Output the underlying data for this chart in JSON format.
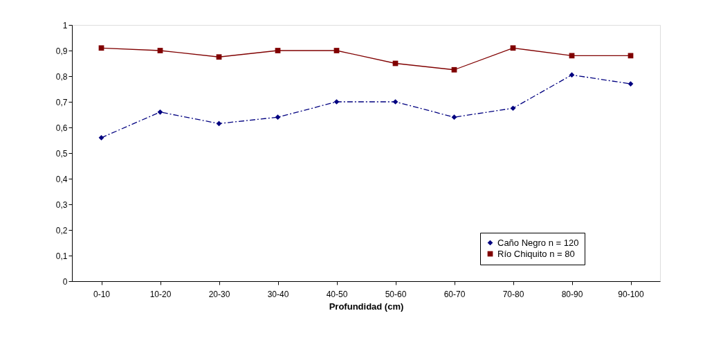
{
  "chart_data": {
    "type": "line",
    "xlabel": "Profundidad (cm)",
    "categories": [
      "0-10",
      "10-20",
      "20-30",
      "30-40",
      "40-50",
      "50-60",
      "60-70",
      "70-80",
      "80-90",
      "90-100"
    ],
    "series": [
      {
        "name": "Caño Negro n = 120",
        "color": "#000080",
        "marker": "diamond",
        "line_style": "dashed",
        "values": [
          0.56,
          0.66,
          0.615,
          0.64,
          0.7,
          0.7,
          0.64,
          0.675,
          0.805,
          0.77
        ]
      },
      {
        "name": "Río Chiquito n = 80",
        "color": "#800000",
        "marker": "square",
        "line_style": "solid",
        "values": [
          0.91,
          0.9,
          0.875,
          0.9,
          0.9,
          0.85,
          0.825,
          0.91,
          0.88,
          0.88
        ]
      }
    ],
    "ylim": [
      0,
      1
    ],
    "yticks": [
      0,
      {
        "value": 0.1,
        "label": "0,1"
      },
      {
        "value": 0.2,
        "label": "0,2"
      },
      {
        "value": 0.3,
        "label": "0,3"
      },
      {
        "value": 0.4,
        "label": "0,4"
      },
      {
        "value": 0.5,
        "label": "0,5"
      },
      {
        "value": 0.6,
        "label": "0,6"
      },
      {
        "value": 0.7,
        "label": "0,7"
      },
      {
        "value": 0.8,
        "label": "0,8"
      },
      {
        "value": 0.9,
        "label": "0,9"
      },
      1
    ],
    "grid": false,
    "legend": "bottom right"
  }
}
